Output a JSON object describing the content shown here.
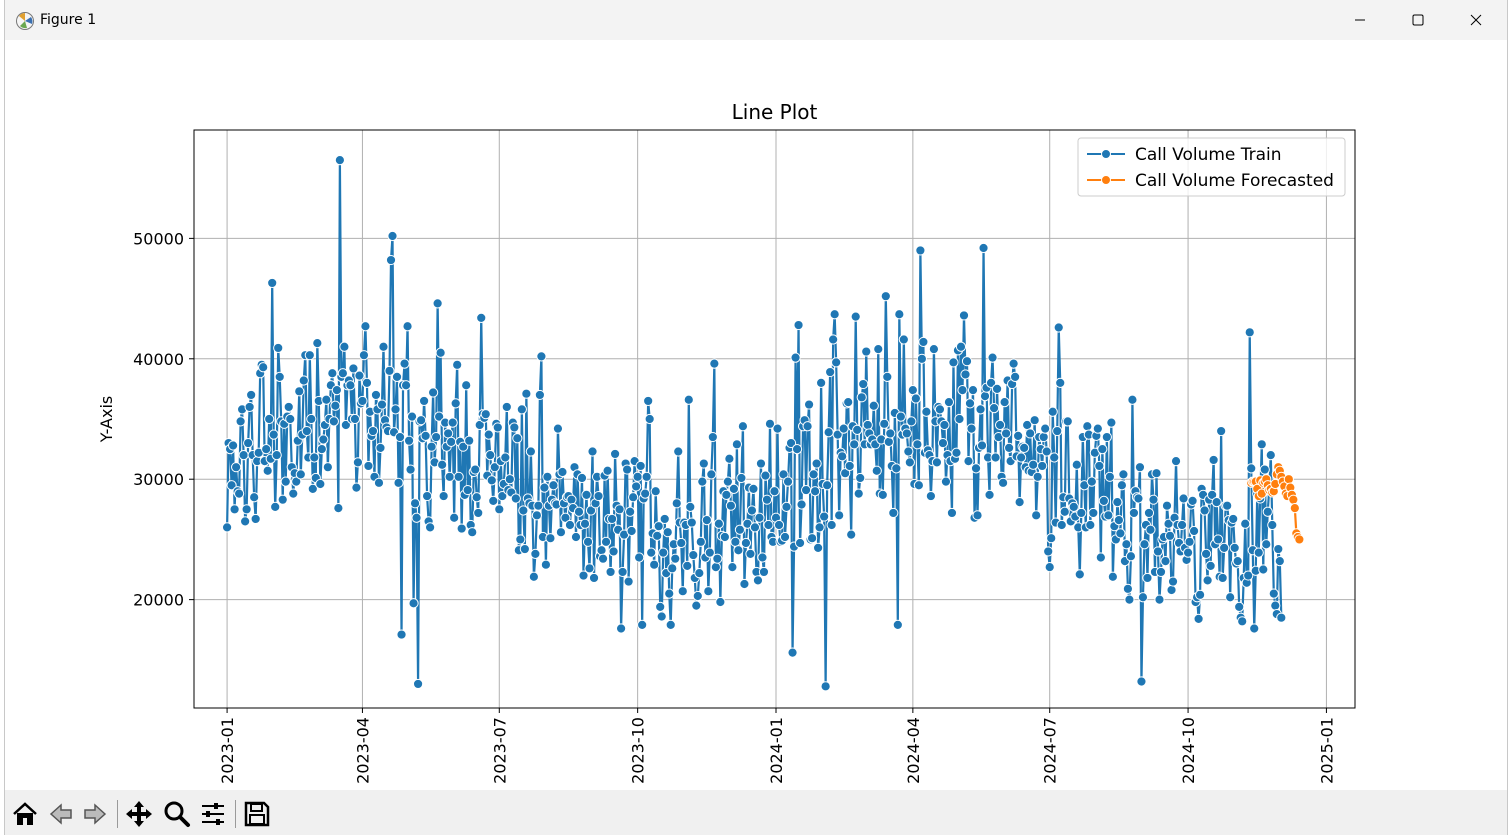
{
  "window": {
    "title": "Figure 1"
  },
  "toolbar": {
    "buttons": [
      "home-icon",
      "back-icon",
      "forward-icon",
      "pan-icon",
      "zoom-icon",
      "configure-icon",
      "save-icon"
    ]
  },
  "colors": {
    "train": "#1f77b4",
    "forecast": "#ff7f0e",
    "grid": "#b0b0b0"
  },
  "chart_data": {
    "type": "line",
    "title": "Line Plot",
    "xlabel": "",
    "ylabel": "Y-Axis",
    "grid": true,
    "legend_position": "top-right",
    "xlim": [
      "2022-12-10",
      "2025-01-20"
    ],
    "ylim": [
      11000,
      59000
    ],
    "x_ticks": [
      "2023-01",
      "2023-04",
      "2023-07",
      "2023-10",
      "2024-01",
      "2024-04",
      "2024-07",
      "2024-10",
      "2025-01"
    ],
    "y_ticks": [
      20000,
      30000,
      40000,
      50000
    ],
    "y_tick_labels": [
      "20000",
      "30000",
      "40000",
      "50000"
    ],
    "series": [
      {
        "name": "Call Volume Train",
        "color": "#1f77b4",
        "marker": "circle",
        "x_start": "2023-01-01",
        "values": [
          26000,
          33000,
          32500,
          29500,
          32800,
          27500,
          31000,
          29000,
          28800,
          34800,
          35800,
          32000,
          26500,
          27500,
          33000,
          36000,
          37000,
          32000,
          28500,
          26700,
          31500,
          32200,
          38800,
          39500,
          39300,
          31500,
          32500,
          30700,
          35000,
          31700,
          46300,
          33700,
          27700,
          32000,
          40900,
          38500,
          34800,
          28300,
          34600,
          29800,
          35200,
          36000,
          35000,
          31000,
          28800,
          30500,
          29800,
          33200,
          37300,
          30400,
          33700,
          38200,
          40300,
          34000,
          31800,
          40300,
          35000,
          29200,
          31800,
          30100,
          41300,
          36500,
          29600,
          32500,
          33300,
          34500,
          36600,
          31000,
          35000,
          37800,
          38800,
          34800,
          36100,
          37400,
          27600,
          56500,
          38500,
          38800,
          41000,
          34500,
          37800,
          38200,
          37800,
          35000,
          39200,
          35000,
          29300,
          31400,
          38600,
          36300,
          36500,
          40300,
          42700,
          38000,
          31100,
          35600,
          33600,
          34000,
          30200,
          37000,
          35800,
          29700,
          32600,
          36200,
          41000,
          34900,
          34300,
          34000,
          39000,
          48200,
          50200,
          33900,
          35800,
          38500,
          29700,
          33500,
          17100,
          37800,
          39600,
          37800,
          42700,
          33200,
          30800,
          35200,
          19700,
          28000,
          26800,
          13000,
          34800,
          34900,
          33400,
          36500,
          33600,
          28600,
          26500,
          26000,
          32700,
          37200,
          31400,
          33500,
          44600,
          35200,
          40500,
          31200,
          28600,
          34700,
          32700,
          33800,
          30200,
          33100,
          34700,
          26800,
          36300,
          39500,
          30200,
          33100,
          25900,
          32700,
          28700,
          37800,
          29100,
          33200,
          26200,
          25600,
          30600,
          30800,
          28500,
          27200,
          34500,
          43400,
          35400,
          35100,
          35400,
          30300,
          33700,
          32000,
          29900,
          28200,
          31000,
          34600,
          34300,
          27500,
          31500,
          28600,
          29600,
          31800,
          36000,
          29100,
          30000,
          28900,
          34700,
          34300,
          28400,
          33400,
          24100,
          25000,
          35800,
          27400,
          24200,
          37100,
          28400,
          28000,
          32300,
          27800,
          21900,
          23800,
          27000,
          27800,
          37000,
          40200,
          25200,
          29300,
          22900,
          30200,
          27800,
          25100,
          28300,
          29500,
          28000,
          27900,
          34200,
          30400,
          25600,
          30600,
          28000,
          26800,
          28500,
          28600,
          26200,
          28300,
          27600,
          31000,
          25200,
          30400,
          27300,
          26200,
          30100,
          22000,
          26300,
          28700,
          24800,
          22600,
          27400,
          32300,
          21800,
          28000,
          30200,
          28600,
          23600,
          24100,
          23400,
          30300,
          24800,
          30700,
          26700,
          22300,
          26700,
          24000,
          32100,
          27800,
          25800,
          27500,
          17600,
          22300,
          25400,
          31300,
          30800,
          21500,
          27300,
          25700,
          28500,
          31500,
          29400,
          30200,
          23500,
          31100,
          17900,
          28400,
          28800,
          30200,
          36500,
          35000,
          23900,
          25500,
          22900,
          29000,
          25300,
          26100,
          19400,
          18600,
          23900,
          26700,
          22200,
          25600,
          20500,
          17900,
          22600,
          24600,
          23400,
          28000,
          32300,
          26400,
          24700,
          20700,
          26400,
          26200,
          22800,
          36600,
          27700,
          26400,
          23700,
          21800,
          19500,
          20300,
          22200,
          24800,
          29800,
          31300,
          23500,
          26600,
          20700,
          23900,
          30400,
          33500,
          39600,
          22700,
          23400,
          26300,
          19800,
          25300,
          29000,
          25200,
          28700,
          29800,
          31700,
          27800,
          22700,
          29200,
          24800,
          32900,
          24100,
          25800,
          30100,
          34400,
          21300,
          24700,
          26300,
          29300,
          23800,
          27400,
          29200,
          26000,
          22300,
          21600,
          26800,
          31300,
          23500,
          22300,
          30300,
          28300,
          26200,
          34600,
          25200,
          24800,
          29000,
          26800,
          34200,
          26200,
          24800,
          24900,
          30400,
          25200,
          27700,
          29800,
          32600,
          33000,
          15600,
          24400,
          40100,
          32500,
          42800,
          24700,
          27900,
          34400,
          34900,
          29100,
          34400,
          36200,
          25000,
          25100,
          30400,
          29000,
          31300,
          24300,
          26000,
          38000,
          29600,
          26900,
          12800,
          29500,
          33900,
          38900,
          26200,
          41600,
          43700,
          39700,
          33700,
          27000,
          32200,
          31900,
          34200,
          30500,
          36300,
          36400,
          31100,
          25400,
          34400,
          32900,
          43500,
          34100,
          28800,
          30100,
          36800,
          37900,
          32900,
          40600,
          34500,
          33800,
          32900,
          33300,
          36100,
          32900,
          30700,
          40800,
          28800,
          33300,
          28700,
          34600,
          45200,
          38500,
          33100,
          33800,
          31100,
          27200,
          35500,
          30900,
          17900,
          43700,
          35200,
          33700,
          41600,
          34200,
          33800,
          32300,
          31400,
          34800,
          37400,
          29600,
          36700,
          32900,
          29500,
          49000,
          40000,
          41400,
          32200,
          35600,
          32400,
          32000,
          28600,
          31500,
          40800,
          34800,
          31400,
          36000,
          35800,
          34800,
          33000,
          34500,
          29800,
          32000,
          36400,
          31500,
          27200,
          39700,
          31700,
          32200,
          40700,
          35000,
          41000,
          37400,
          43600,
          38700,
          39800,
          31500,
          36300,
          34200,
          37400,
          26800,
          30900,
          27000,
          32600,
          35800,
          32800,
          49200,
          36900,
          37600,
          31800,
          28700,
          38000,
          40100,
          35900,
          31800,
          37500,
          33500,
          34500,
          30200,
          29700,
          36400,
          33800,
          38200,
          32600,
          31500,
          37900,
          39600,
          38500,
          31900,
          33600,
          28100,
          31800,
          32700,
          32600,
          31000,
          34500,
          30700,
          33800,
          30600,
          31200,
          34900,
          27000,
          30200,
          33500,
          32500,
          31100,
          33500,
          34200,
          32300,
          24000,
          22700,
          25100,
          35600,
          31800,
          26400,
          34000,
          42600,
          38000,
          26200,
          28500,
          27300,
          34800,
          34800,
          28400,
          26500,
          28000,
          27700,
          26900,
          31200,
          26000,
          22100,
          27200,
          33500,
          29500,
          26000,
          34400,
          33700,
          26200,
          29800,
          27200,
          32200,
          33600,
          34200,
          31100,
          23500,
          32500,
          28200,
          26900,
          33500,
          27000,
          30200,
          34700,
          21900,
          26100,
          25000,
          28100,
          26600,
          25500,
          29500,
          30400,
          23200,
          24600,
          20900,
          20000,
          23600,
          36600,
          27200,
          29000,
          28500,
          28400,
          31000,
          13200,
          20200,
          24600,
          26200,
          21800,
          27200,
          25800,
          30400,
          28300,
          22300,
          30500,
          24000,
          20000,
          22300,
          25000,
          25200,
          23200,
          27800,
          26300,
          25300,
          20800,
          21500,
          26800,
          31500,
          26200,
          24700,
          24000,
          26200,
          28400,
          24300,
          23300,
          23900,
          24800,
          27900,
          28200,
          25700,
          19800,
          20200,
          18400,
          20400,
          29200,
          28700,
          27400,
          23800,
          21600,
          28300,
          22800,
          28700,
          31600,
          24600,
          28100,
          25000,
          21900,
          34000,
          21800,
          24300,
          27800,
          27800,
          26600,
          20200,
          26400,
          26700,
          24300,
          23000,
          23200,
          19400,
          18500,
          18200,
          21800,
          26300,
          21400,
          22000,
          42200,
          30900,
          24100,
          17600,
          22400,
          28800,
          23900,
          28400,
          32900,
          22500,
          30800,
          24600,
          27300,
          29300,
          32000,
          26200,
          20500,
          19500,
          18800,
          24200,
          23200,
          18500
        ]
      },
      {
        "name": "Call Volume Forecasted",
        "color": "#ff7f0e",
        "marker": "circle",
        "x_start": "2024-11-12",
        "values": [
          29700,
          29800,
          29800,
          29800,
          29200,
          28600,
          29900,
          28800,
          29700,
          29800,
          30000,
          29500,
          29100,
          29200,
          28900,
          29000,
          29600,
          30400,
          31000,
          30700,
          30200,
          29800,
          29400,
          28800,
          28600,
          30000,
          29300,
          28700,
          28300,
          27600,
          25500,
          25200,
          25000
        ]
      }
    ]
  }
}
